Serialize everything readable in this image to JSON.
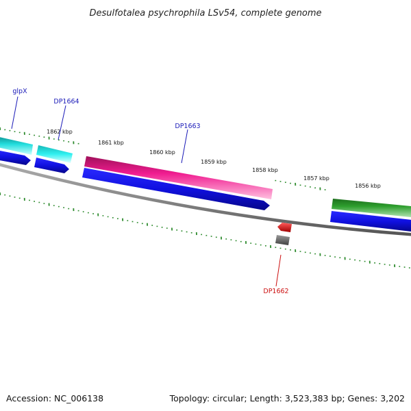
{
  "title": "Desulfotalea psychrophila LSv54, complete genome",
  "footer": {
    "accession": "Accession: NC_006138",
    "summary": "Topology: circular; Length: 3,523,383 bp; Genes: 3,202"
  },
  "scale_labels": [
    "1862 kbp",
    "1861 kbp",
    "1860 kbp",
    "1859 kbp",
    "1858 kbp",
    "1857 kbp",
    "1856 kbp"
  ],
  "gene_labels": {
    "glpX": "glpX",
    "DP1664": "DP1664",
    "DP1663": "DP1663",
    "DP1662": "DP1662"
  },
  "colors": {
    "backbone": "#8a8a8a",
    "ticks": "#2e8b2e",
    "cyan_gene": "#1fd1d1",
    "magenta_gene": "#e8198c",
    "blue_cds": "#1010e0",
    "green_gene": "#2a9a2a",
    "red_gene": "#e81010",
    "gray_gene": "#707070",
    "label_blue": "#1a1ab8",
    "label_red": "#cc1010"
  }
}
